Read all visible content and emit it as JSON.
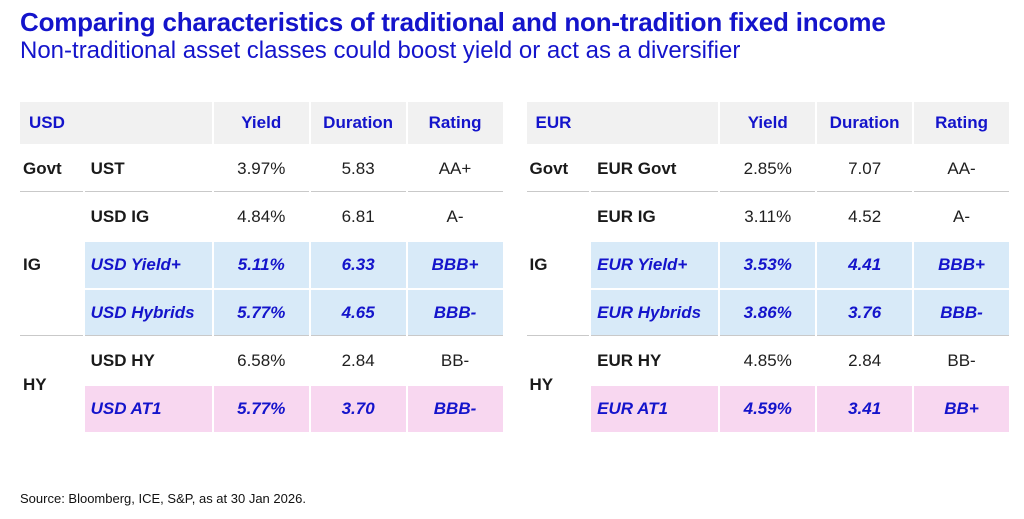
{
  "header": {
    "title": "Comparing characteristics of traditional and non-tradition fixed income",
    "subtitle": "Non-traditional asset classes could boost yield or act as a diversifier"
  },
  "chart_data": [
    {
      "type": "table",
      "title": "USD",
      "columns": [
        "Yield",
        "Duration",
        "Rating"
      ],
      "groups": [
        {
          "label": "Govt",
          "rows": [
            {
              "name": "UST",
              "yield": "3.97%",
              "duration": "5.83",
              "rating": "AA+",
              "highlight": "none"
            }
          ]
        },
        {
          "label": "IG",
          "rows": [
            {
              "name": "USD IG",
              "yield": "4.84%",
              "duration": "6.81",
              "rating": "A-",
              "highlight": "none"
            },
            {
              "name": "USD Yield+",
              "yield": "5.11%",
              "duration": "6.33",
              "rating": "BBB+",
              "highlight": "blue"
            },
            {
              "name": "USD Hybrids",
              "yield": "5.77%",
              "duration": "4.65",
              "rating": "BBB-",
              "highlight": "blue"
            }
          ]
        },
        {
          "label": "HY",
          "rows": [
            {
              "name": "USD HY",
              "yield": "6.58%",
              "duration": "2.84",
              "rating": "BB-",
              "highlight": "none"
            },
            {
              "name": "USD AT1",
              "yield": "5.77%",
              "duration": "3.70",
              "rating": "BBB-",
              "highlight": "pink"
            }
          ]
        }
      ]
    },
    {
      "type": "table",
      "title": "EUR",
      "columns": [
        "Yield",
        "Duration",
        "Rating"
      ],
      "groups": [
        {
          "label": "Govt",
          "rows": [
            {
              "name": "EUR Govt",
              "yield": "2.85%",
              "duration": "7.07",
              "rating": "AA-",
              "highlight": "none"
            }
          ]
        },
        {
          "label": "IG",
          "rows": [
            {
              "name": "EUR IG",
              "yield": "3.11%",
              "duration": "4.52",
              "rating": "A-",
              "highlight": "none"
            },
            {
              "name": "EUR Yield+",
              "yield": "3.53%",
              "duration": "4.41",
              "rating": "BBB+",
              "highlight": "blue"
            },
            {
              "name": "EUR Hybrids",
              "yield": "3.86%",
              "duration": "3.76",
              "rating": "BBB-",
              "highlight": "blue"
            }
          ]
        },
        {
          "label": "HY",
          "rows": [
            {
              "name": "EUR HY",
              "yield": "4.85%",
              "duration": "2.84",
              "rating": "BB-",
              "highlight": "none"
            },
            {
              "name": "EUR AT1",
              "yield": "4.59%",
              "duration": "3.41",
              "rating": "BB+",
              "highlight": "pink"
            }
          ]
        }
      ]
    }
  ],
  "footer": {
    "source": "Source: Bloomberg, ICE, S&P, as at 30 Jan 2026."
  },
  "colors": {
    "accent_blue": "#1414CB",
    "highlight_blue_bg": "#D8EAF8",
    "highlight_pink_bg": "#F8D7F0",
    "header_bg": "#F1F1F1",
    "divider_line": "#C9C9C9",
    "body_text": "#1A1A1A"
  }
}
